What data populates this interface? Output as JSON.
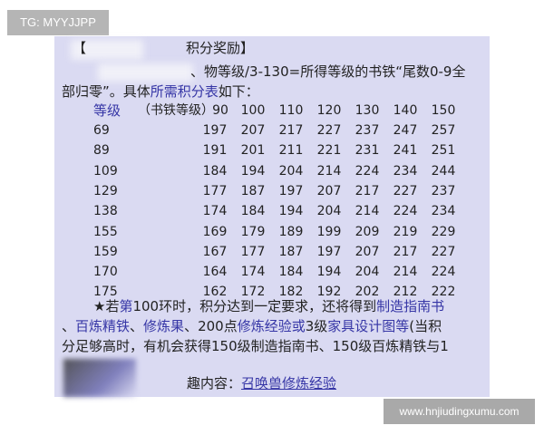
{
  "badge": "TG: MYYJJPP",
  "watermark": "www.hnjiudingxumu.com",
  "doc": {
    "title_bracket": "【",
    "title": "积分奖励】",
    "line1": "、物等级/3-130=所得等级的书铁“尾数0-9全",
    "line2_a": "部归零”。具体",
    "line2_link": "所需积分表",
    "line2_b": "如下：",
    "table": {
      "header_level": "等级",
      "header_sub": "（书铁等级）",
      "columns": [
        "90",
        "100",
        "110",
        "120",
        "130",
        "140",
        "150"
      ],
      "rows": [
        {
          "level": "69",
          "values": [
            "197",
            "207",
            "217",
            "227",
            "237",
            "247",
            "257"
          ]
        },
        {
          "level": "89",
          "values": [
            "191",
            "201",
            "211",
            "221",
            "231",
            "241",
            "251"
          ]
        },
        {
          "level": "109",
          "values": [
            "184",
            "194",
            "204",
            "214",
            "224",
            "234",
            "244"
          ]
        },
        {
          "level": "129",
          "values": [
            "177",
            "187",
            "197",
            "207",
            "217",
            "227",
            "237"
          ]
        },
        {
          "level": "138",
          "values": [
            "174",
            "184",
            "194",
            "204",
            "214",
            "224",
            "234"
          ]
        },
        {
          "level": "155",
          "values": [
            "169",
            "179",
            "189",
            "199",
            "209",
            "219",
            "229"
          ]
        },
        {
          "level": "159",
          "values": [
            "167",
            "177",
            "187",
            "197",
            "207",
            "217",
            "227"
          ]
        },
        {
          "level": "170",
          "values": [
            "164",
            "174",
            "184",
            "194",
            "204",
            "214",
            "224"
          ]
        },
        {
          "level": "175",
          "values": [
            "162",
            "172",
            "182",
            "192",
            "202",
            "212",
            "222"
          ]
        }
      ]
    },
    "note_l1_a": "★若",
    "note_l1_b": "第",
    "note_l1_c": "100环时，积分达到一定要求，还将得到",
    "note_l1_d": "制造指南书",
    "note_l2_a": "、",
    "note_l2_b": "百炼精铁",
    "note_l2_c": "、",
    "note_l2_d": "修炼果",
    "note_l2_e": "、200点",
    "note_l2_f": "修炼经验或",
    "note_l2_g": "3级",
    "note_l2_h": "家具设计图等",
    "note_l2_i": "(当积",
    "note_l3": "分足够高时，有机会获得150级制造指南书、150级百炼精铁与1",
    "related_label": "趣内容：",
    "related_link": "召唤兽修炼经验"
  }
}
